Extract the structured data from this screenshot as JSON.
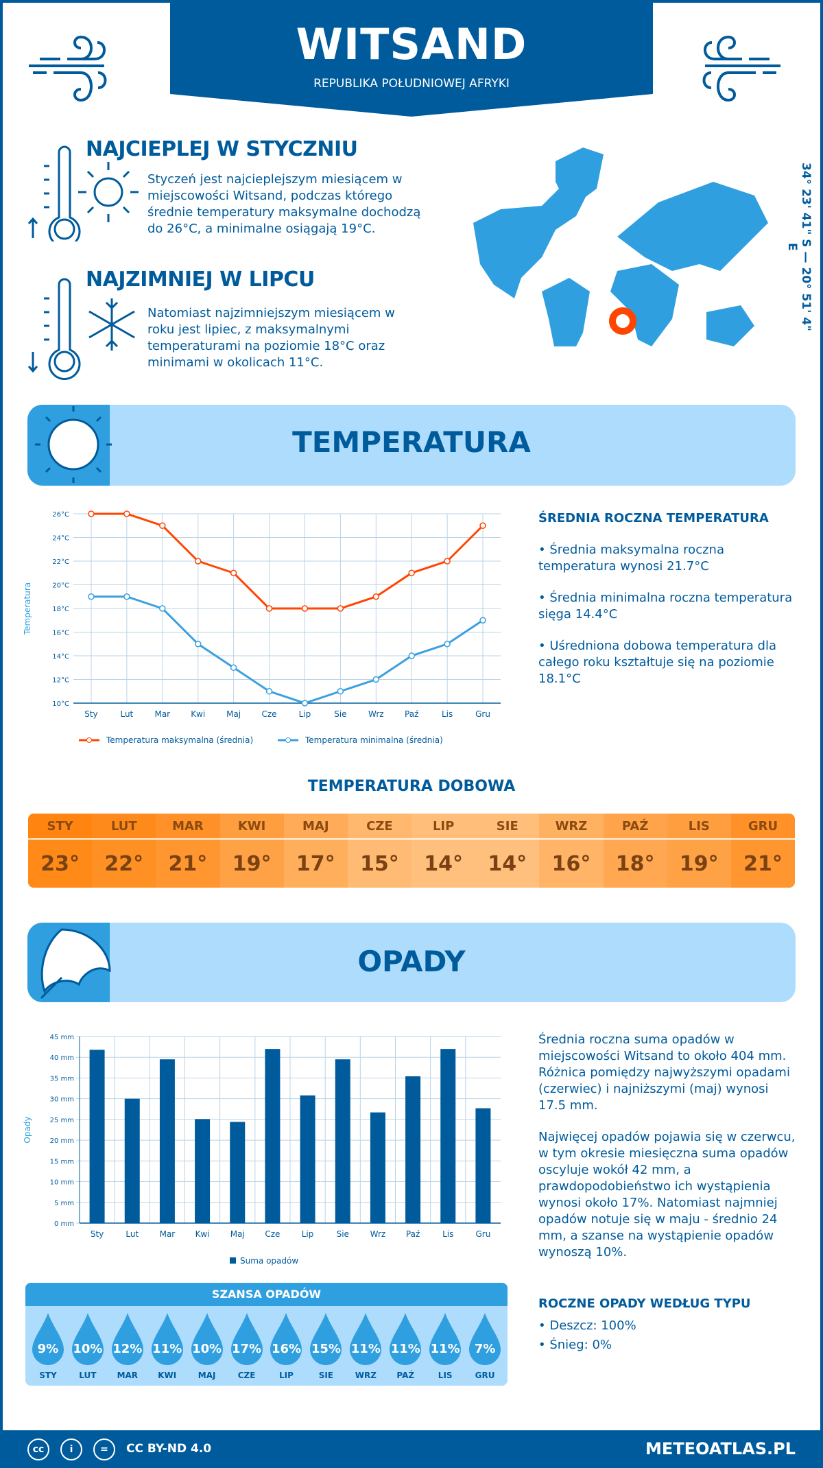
{
  "header": {
    "title": "WITSAND",
    "subtitle": "REPUBLIKA POŁUDNIOWEJ AFRYKI",
    "coordinates": "34° 23' 41\" S — 20° 51' 4\" E"
  },
  "warmest": {
    "heading": "NAJCIEPLEJ W STYCZNIU",
    "text": "Styczeń jest najcieplejszym miesiącem w miejscowości Witsand, podczas którego średnie temperatury maksymalne dochodzą do 26°C, a minimalne osiągają 19°C."
  },
  "coldest": {
    "heading": "NAJZIMNIEJ W LIPCU",
    "text": "Natomiast najzimniejszym miesiącem w roku jest lipiec, z maksymalnymi temperaturami na poziomie 18°C oraz minimami w okolicach 11°C."
  },
  "temperature": {
    "band_title": "TEMPERATURA",
    "summary_heading": "ŚREDNIA ROCZNA TEMPERATURA",
    "bullets": [
      "• Średnia maksymalna roczna temperatura wynosi 21.7°C",
      "• Średnia minimalna roczna temperatura sięga 14.4°C",
      "• Uśredniona dobowa temperatura dla całego roku kształtuje się na poziomie 18.1°C"
    ],
    "daily_title": "TEMPERATURA DOBOWA",
    "daily": [
      {
        "m": "STY",
        "v": "23°",
        "t": 23
      },
      {
        "m": "LUT",
        "v": "22°",
        "t": 22
      },
      {
        "m": "MAR",
        "v": "21°",
        "t": 21
      },
      {
        "m": "KWI",
        "v": "19°",
        "t": 19
      },
      {
        "m": "MAJ",
        "v": "17°",
        "t": 17
      },
      {
        "m": "CZE",
        "v": "15°",
        "t": 15
      },
      {
        "m": "LIP",
        "v": "14°",
        "t": 14
      },
      {
        "m": "SIE",
        "v": "14°",
        "t": 14
      },
      {
        "m": "WRZ",
        "v": "16°",
        "t": 16
      },
      {
        "m": "PAŹ",
        "v": "18°",
        "t": 18
      },
      {
        "m": "LIS",
        "v": "19°",
        "t": 19
      },
      {
        "m": "GRU",
        "v": "21°",
        "t": 21
      }
    ]
  },
  "precipitation": {
    "band_title": "OPADY",
    "text1": "Średnia roczna suma opadów w miejscowości Witsand to około 404 mm. Różnica pomiędzy najwyższymi opadami (czerwiec) i najniższymi (maj) wynosi 17.5 mm.",
    "text2": "Najwięcej opadów pojawia się w czerwcu, w tym okresie miesięczna suma opadów oscyluje wokół 42 mm, a prawdopodobieństwo ich wystąpienia wynosi około 17%. Natomiast najmniej opadów notuje się w maju - średnio 24 mm, a szanse na wystąpienie opadów wynoszą 10%.",
    "type_heading": "ROCZNE OPADY WEDŁUG TYPU",
    "types": [
      "• Deszcz: 100%",
      "• Śnieg: 0%"
    ],
    "chance_title": "SZANSA OPADÓW",
    "chance": [
      {
        "m": "STY",
        "v": "9%"
      },
      {
        "m": "LUT",
        "v": "10%"
      },
      {
        "m": "MAR",
        "v": "12%"
      },
      {
        "m": "KWI",
        "v": "11%"
      },
      {
        "m": "MAJ",
        "v": "10%"
      },
      {
        "m": "CZE",
        "v": "17%"
      },
      {
        "m": "LIP",
        "v": "16%"
      },
      {
        "m": "SIE",
        "v": "15%"
      },
      {
        "m": "WRZ",
        "v": "11%"
      },
      {
        "m": "PAŹ",
        "v": "11%"
      },
      {
        "m": "LIS",
        "v": "11%"
      },
      {
        "m": "GRU",
        "v": "7%"
      }
    ]
  },
  "footer": {
    "license": "CC BY-ND 4.0",
    "site": "METEOATLAS.PL"
  },
  "colors": {
    "dark_blue": "#005b9c",
    "mid_blue": "#2f9fe0",
    "light_blue": "#aedcfd",
    "max_line": "#ff4500",
    "min_line": "#3aa0e0",
    "marker": "#ff4500"
  },
  "chart_data": [
    {
      "type": "line",
      "categories": [
        "Sty",
        "Lut",
        "Mar",
        "Kwi",
        "Maj",
        "Cze",
        "Lip",
        "Sie",
        "Wrz",
        "Paź",
        "Lis",
        "Gru"
      ],
      "series": [
        {
          "name": "Temperatura maksymalna (średnia)",
          "values": [
            26,
            26,
            25,
            22,
            21,
            18,
            18,
            18,
            19,
            21,
            22,
            25
          ]
        },
        {
          "name": "Temperatura minimalna (średnia)",
          "values": [
            19,
            19,
            18,
            15,
            13,
            11,
            10,
            11,
            12,
            14,
            15,
            17
          ]
        }
      ],
      "ylabel": "Temperatura",
      "ylim": [
        10,
        26
      ],
      "yticks": [
        "10°C",
        "12°C",
        "14°C",
        "16°C",
        "18°C",
        "20°C",
        "22°C",
        "24°C",
        "26°C"
      ],
      "grid": true,
      "legend": "bottom"
    },
    {
      "type": "bar",
      "categories": [
        "Sty",
        "Lut",
        "Mar",
        "Kwi",
        "Maj",
        "Cze",
        "Lip",
        "Sie",
        "Wrz",
        "Paź",
        "Lis",
        "Gru"
      ],
      "series": [
        {
          "name": "Suma opadów",
          "values": [
            41.8,
            30,
            39.5,
            25.1,
            24.4,
            42,
            30.8,
            39.5,
            26.7,
            35.4,
            42,
            27.7
          ]
        }
      ],
      "ylabel": "Opady",
      "ylim": [
        0,
        45
      ],
      "yticks": [
        "0 mm",
        "5 mm",
        "10 mm",
        "15 mm",
        "20 mm",
        "25 mm",
        "30 mm",
        "35 mm",
        "40 mm",
        "45 mm"
      ],
      "grid": true,
      "legend": "bottom"
    }
  ]
}
